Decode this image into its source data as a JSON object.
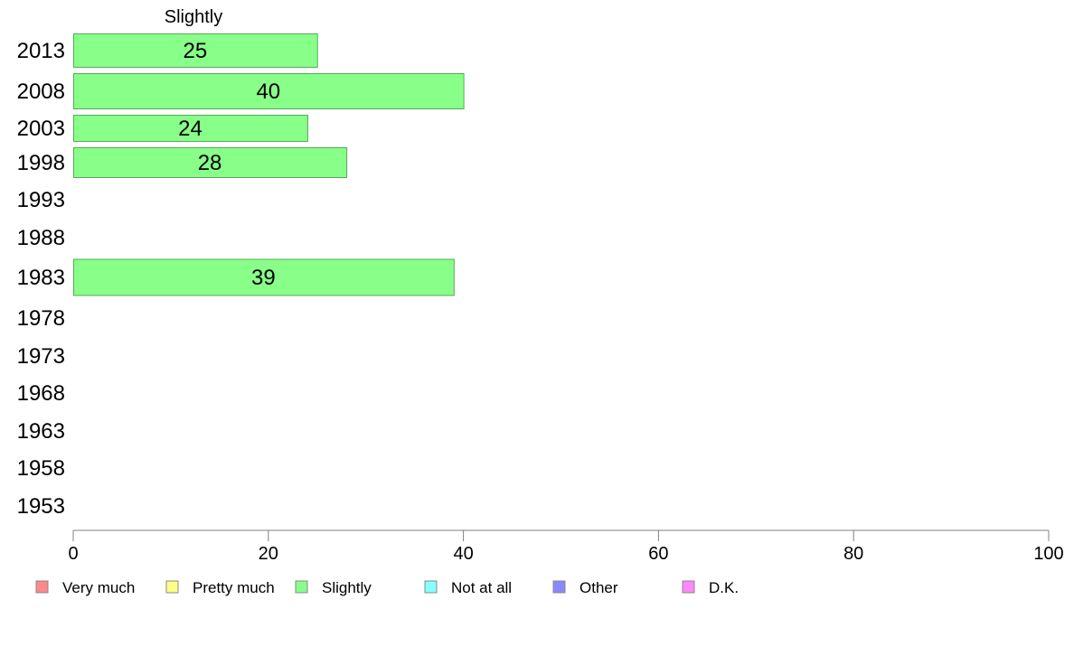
{
  "chart_data": {
    "type": "bar",
    "orientation": "horizontal",
    "title": "",
    "series_title": "Slightly",
    "xlabel": "",
    "ylabel": "",
    "xlim": [
      0,
      100
    ],
    "x_ticks": [
      0,
      20,
      40,
      60,
      80,
      100
    ],
    "grid": false,
    "legend_position": "bottom",
    "categories": [
      "2013",
      "2008",
      "2003",
      "1998",
      "1993",
      "1988",
      "1983",
      "1978",
      "1973",
      "1968",
      "1963",
      "1958",
      "1953"
    ],
    "series": [
      {
        "name": "Slightly",
        "color": "#88ff88",
        "values": [
          25,
          40,
          24,
          28,
          null,
          null,
          39,
          null,
          null,
          null,
          null,
          null,
          null
        ]
      }
    ],
    "legend": [
      {
        "label": "Very much",
        "color": "#ff8888"
      },
      {
        "label": "Pretty much",
        "color": "#ffff88"
      },
      {
        "label": "Slightly",
        "color": "#88ff88"
      },
      {
        "label": "Not at all",
        "color": "#88ffff"
      },
      {
        "label": "Other",
        "color": "#8888ff"
      },
      {
        "label": "D.K.",
        "color": "#ff88ff"
      }
    ]
  }
}
